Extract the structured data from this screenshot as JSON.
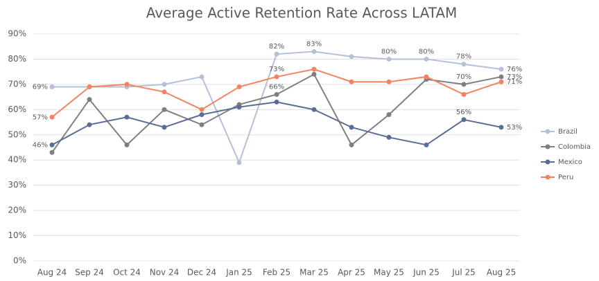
{
  "chart_data": {
    "type": "line",
    "title": "Average Active Retention Rate Across LATAM",
    "categories": [
      "Aug 24",
      "Sep 24",
      "Oct 24",
      "Nov 24",
      "Dec 24",
      "Jan 25",
      "Feb 25",
      "Mar 25",
      "Apr 25",
      "May 25",
      "Jun 25",
      "Jul 25",
      "Aug 25"
    ],
    "ylim": [
      0,
      90
    ],
    "yticks": [
      {
        "value": 0,
        "label": "0%"
      },
      {
        "value": 10,
        "label": "10%"
      },
      {
        "value": 20,
        "label": "20%"
      },
      {
        "value": 30,
        "label": "30%"
      },
      {
        "value": 40,
        "label": "40%"
      },
      {
        "value": 50,
        "label": "50%"
      },
      {
        "value": 60,
        "label": "60%"
      },
      {
        "value": 70,
        "label": "70%"
      },
      {
        "value": 80,
        "label": "80%"
      },
      {
        "value": 90,
        "label": "90%"
      }
    ],
    "grid": true,
    "legend": "right",
    "series": [
      {
        "name": "Brazil",
        "color": "#b4c0d8",
        "values": [
          69,
          69,
          69,
          70,
          73,
          39,
          82,
          83,
          81,
          80,
          80,
          78,
          76
        ],
        "value_labels": [
          "69%",
          null,
          null,
          null,
          null,
          null,
          "82%",
          "83%",
          null,
          "80%",
          "80%",
          "78%",
          "76%"
        ]
      },
      {
        "name": "Colombia",
        "color": "#7f7f7f",
        "values": [
          43,
          64,
          46,
          60,
          54,
          62,
          66,
          74,
          46,
          58,
          72,
          70,
          73
        ],
        "value_labels": [
          null,
          null,
          null,
          null,
          null,
          null,
          "66%",
          null,
          null,
          null,
          null,
          "70%",
          "73%"
        ]
      },
      {
        "name": "Mexico",
        "color": "#5a6d96",
        "values": [
          46,
          54,
          57,
          53,
          58,
          61,
          63,
          60,
          53,
          49,
          46,
          56,
          53
        ],
        "value_labels": [
          "46%",
          null,
          null,
          null,
          null,
          null,
          null,
          null,
          null,
          null,
          null,
          "56%",
          "53%"
        ]
      },
      {
        "name": "Peru",
        "color": "#f4845f",
        "values": [
          57,
          69,
          70,
          67,
          60,
          69,
          73,
          76,
          71,
          71,
          73,
          66,
          71
        ],
        "value_labels": [
          "57%",
          null,
          null,
          null,
          null,
          null,
          "73%",
          null,
          null,
          null,
          null,
          null,
          "71%"
        ]
      }
    ]
  }
}
